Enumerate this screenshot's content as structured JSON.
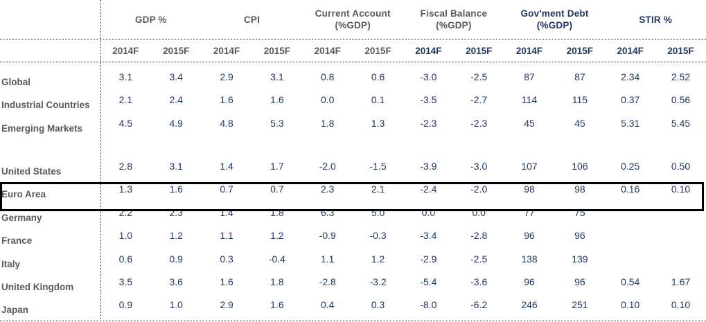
{
  "chart_data": {
    "type": "table",
    "title": "",
    "column_groups": [
      {
        "lines": [
          "GDP %"
        ],
        "tone": "gray"
      },
      {
        "lines": [
          "CPI"
        ],
        "tone": "gray"
      },
      {
        "lines": [
          "Current Account",
          "(%GDP)"
        ],
        "tone": "gray"
      },
      {
        "lines": [
          "Fiscal Balance",
          "(%GDP)"
        ],
        "tone": "gray"
      },
      {
        "lines": [
          "Gov'ment Debt",
          "(%GDP)"
        ],
        "tone": "navy"
      },
      {
        "lines": [
          "STIR %"
        ],
        "tone": "navy"
      }
    ],
    "sub_columns": [
      {
        "label": "2014F",
        "tone": "gray"
      },
      {
        "label": "2015F",
        "tone": "gray"
      },
      {
        "label": "2014F",
        "tone": "gray"
      },
      {
        "label": "2015F",
        "tone": "gray"
      },
      {
        "label": "2014F",
        "tone": "gray"
      },
      {
        "label": "2015F",
        "tone": "gray"
      },
      {
        "label": "2014F",
        "tone": "navy"
      },
      {
        "label": "2015F",
        "tone": "navy"
      },
      {
        "label": "2014F",
        "tone": "navy"
      },
      {
        "label": "2015F",
        "tone": "navy"
      },
      {
        "label": "2014F",
        "tone": "navy"
      },
      {
        "label": "2015F",
        "tone": "navy"
      }
    ],
    "rows": [
      {
        "label": "Global",
        "values": [
          "3.1",
          "3.4",
          "2.9",
          "3.1",
          "0.8",
          "0.6",
          "-3.0",
          "-2.5",
          "87",
          "87",
          "2.34",
          "2.52"
        ]
      },
      {
        "label": "Industrial Countries",
        "values": [
          "2.1",
          "2.4",
          "1.6",
          "1.6",
          "0.0",
          "0.1",
          "-3.5",
          "-2.7",
          "114",
          "115",
          "0.37",
          "0.56"
        ]
      },
      {
        "label": "Emerging Markets",
        "values": [
          "4.5",
          "4.9",
          "4.8",
          "5.3",
          "1.8",
          "1.3",
          "-2.3",
          "-2.3",
          "45",
          "45",
          "5.31",
          "5.45"
        ]
      },
      {
        "label": "",
        "spacer": true,
        "values": [
          "",
          "",
          "",
          "",
          "",
          "",
          "",
          "",
          "",
          "",
          "",
          ""
        ]
      },
      {
        "label": "United States",
        "values": [
          "2.8",
          "3.1",
          "1.4",
          "1.7",
          "-2.0",
          "-1.5",
          "-3.9",
          "-3.0",
          "107",
          "106",
          "0.25",
          "0.50"
        ]
      },
      {
        "label": "Euro Area",
        "highlighted": true,
        "values": [
          "1.3",
          "1.6",
          "0.7",
          "0.7",
          "2.3",
          "2.1",
          "-2.4",
          "-2.0",
          "98",
          "98",
          "0.16",
          "0.10"
        ]
      },
      {
        "label": "Germany",
        "values": [
          "2.2",
          "2.3",
          "1.4",
          "1.8",
          "6.3",
          "5.0",
          "0.0",
          "0.0",
          "77",
          "75",
          "",
          ""
        ]
      },
      {
        "label": "France",
        "values": [
          "1.0",
          "1.2",
          "1.1",
          "1.2",
          "-0.9",
          "-0.3",
          "-3.4",
          "-2.8",
          "96",
          "96",
          "",
          ""
        ]
      },
      {
        "label": "Italy",
        "values": [
          "0.6",
          "0.9",
          "0.3",
          "-0.4",
          "1.1",
          "1.2",
          "-2.9",
          "-2.5",
          "138",
          "139",
          "",
          ""
        ]
      },
      {
        "label": "United Kingdom",
        "values": [
          "3.5",
          "3.6",
          "1.6",
          "1.8",
          "-2.8",
          "-3.2",
          "-5.4",
          "-3.6",
          "96",
          "96",
          "0.54",
          "1.67"
        ]
      },
      {
        "label": "Japan",
        "values": [
          "0.9",
          "1.0",
          "2.9",
          "1.6",
          "0.4",
          "0.3",
          "-8.0",
          "-6.2",
          "246",
          "251",
          "0.10",
          "0.10"
        ]
      }
    ],
    "highlighted_row": "Euro Area",
    "layout": {
      "grid": "dotted separators below header rows, dotted column divider after row labels, dotted bottom rule"
    },
    "colors": {
      "header_gray": "#595959",
      "header_navy": "#1f3864",
      "value_navy": "#1f3864",
      "highlight_border": "#000000",
      "divider": "#1a1a1a",
      "background": "#ffffff"
    }
  }
}
